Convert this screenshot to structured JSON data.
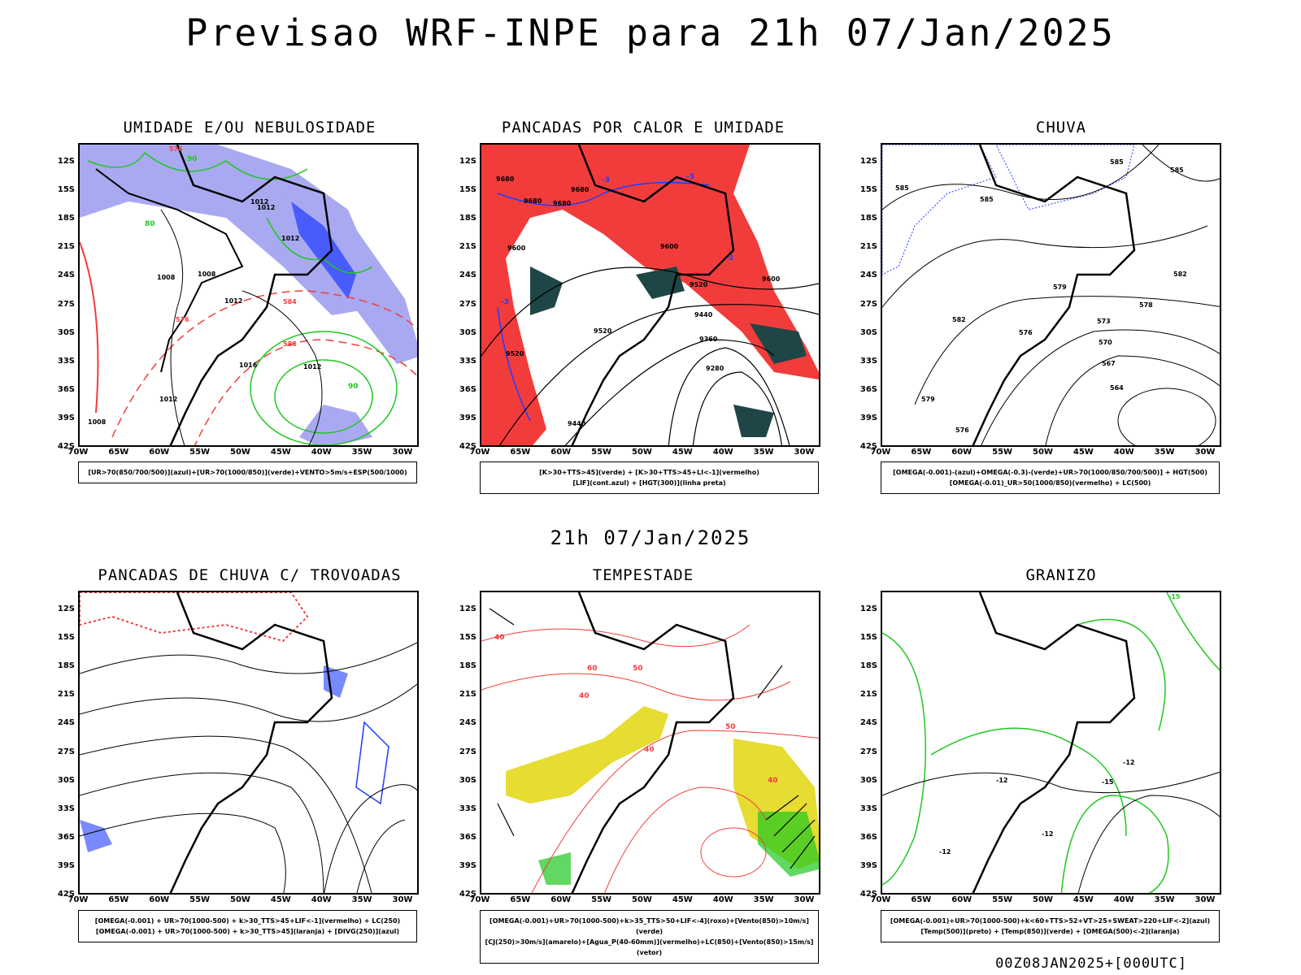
{
  "header": {
    "title": "Previsao WRF-INPE  para 21h 07/Jan/2025",
    "mid_time": "21h 07/Jan/2025",
    "footer": "00Z08JAN2025+[000UTC]"
  },
  "axes": {
    "lat_labels": [
      "12S",
      "15S",
      "18S",
      "21S",
      "24S",
      "27S",
      "30S",
      "33S",
      "36S",
      "39S",
      "42S"
    ],
    "lon_labels": [
      "70W",
      "65W",
      "60W",
      "55W",
      "50W",
      "45W",
      "40W",
      "35W",
      "30W"
    ]
  },
  "panels": [
    {
      "title": "UMIDADE E/OU NEBULOSIDADE",
      "legend": [
        "[UR>70(850/700/500)](azul)+[UR>70(1000/850)](verde)+VENTO>5m/s+ESP(500/1000)"
      ],
      "labels": [
        "1012",
        "1012",
        "1012",
        "1008",
        "1008",
        "1016",
        "1012",
        "1012",
        "1008",
        "1012",
        "576",
        "576",
        "584",
        "588",
        "90",
        "90",
        "80"
      ]
    },
    {
      "title": "PANCADAS POR CALOR E UMIDADE",
      "legend": [
        "[K>30+TTS>45](verde) + [K>30+TTS>45+LI<-1](vermelho)",
        "[LIF](cont.azul) + [HGT(300)](linha preta)"
      ],
      "labels": [
        "9680",
        "9680",
        "9680",
        "9680",
        "9600",
        "9600",
        "9600",
        "9520",
        "9520",
        "9520",
        "9440",
        "9440",
        "9360",
        "9280",
        "-3",
        "-3",
        "-3",
        "-3"
      ]
    },
    {
      "title": "CHUVA",
      "legend": [
        "[OMEGA(-0.001)-(azul)+OMEGA(-0.3)-(verde)+UR>70(1000/850/700/500)] + HGT(500)",
        "[OMEGA(-0.01)_UR>50(1000/850)(vermelho) + LC(500)"
      ],
      "labels": [
        "585",
        "585",
        "585",
        "585",
        "582",
        "582",
        "579",
        "578",
        "576",
        "576",
        "573",
        "570",
        "567",
        "564",
        "579"
      ]
    },
    {
      "title": "PANCADAS DE CHUVA C/ TROVOADAS",
      "legend": [
        "[OMEGA(-0.001) + UR>70(1000-500) + k>30_TTS>45+LIF<-1](vermelho) + LC(250)",
        "[OMEGA(-0.001) + UR>70(1000-500) + k>30_TTS>45](laranja) + [DIVG(250)](azul)"
      ],
      "labels": []
    },
    {
      "title": "TEMPESTADE",
      "legend": [
        "[OMEGA(-0.001)+UR>70(1000-500)+k>35_TTS>50+LIF<-4](roxo)+[Vento(850)>10m/s](verde)",
        "[CJ(250)>30m/s](amarelo)+[Agua_P(40-60mm)](vermelho)+LC(850)+[Vento(850)>15m/s](vetor)"
      ],
      "labels": [
        "40",
        "40",
        "50",
        "50",
        "60",
        "40",
        "40"
      ]
    },
    {
      "title": "GRANIZO",
      "legend": [
        "[OMEGA(-0.001)+UR>70(1000-500)+k<60+TTS>52+VT>25+SWEAT>220+LIF<-2](azul)",
        "[Temp(500)](preto) + [Temp(850)](verde) + [OMEGA(500)<-2](laranja)"
      ],
      "labels": [
        "-12",
        "-12",
        "-12",
        "-15",
        "-12",
        "-15"
      ]
    }
  ],
  "colors": {
    "blue_fill": "#a9a9f2",
    "blue_line": "#1e3cff",
    "green_line": "#1ec81e",
    "red": "#f23c3c",
    "dark_teal": "#1e4646",
    "yellow": "#e6dc32",
    "orange": "#ff9600",
    "black": "#000000"
  }
}
